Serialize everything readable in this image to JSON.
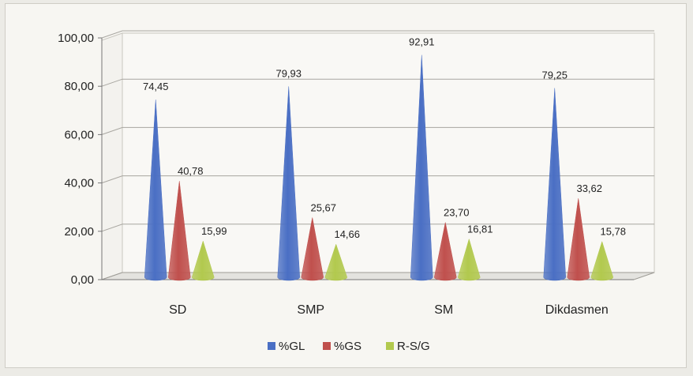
{
  "chart_data": {
    "type": "bar",
    "style": "3d-cone",
    "categories": [
      "SD",
      "SMP",
      "SM",
      "Dikdasmen"
    ],
    "series": [
      {
        "name": "%GL",
        "values": [
          74.45,
          79.93,
          92.91,
          79.25
        ],
        "labels": [
          "74,45",
          "79,93",
          "92,91",
          "79,25"
        ],
        "color": "#4a6fc4"
      },
      {
        "name": "%GS",
        "values": [
          40.78,
          25.67,
          23.7,
          33.62
        ],
        "labels": [
          "40,78",
          "25,67",
          "23,70",
          "33,62"
        ],
        "color": "#c0504d"
      },
      {
        "name": "R-S/G",
        "values": [
          15.99,
          14.66,
          16.81,
          15.78
        ],
        "labels": [
          "15,99",
          "14,66",
          "16,81",
          "15,78"
        ],
        "color": "#b2c94e"
      }
    ],
    "yticks": [
      "0,00",
      "20,00",
      "40,00",
      "60,00",
      "80,00",
      "100,00"
    ],
    "ylim": [
      0,
      100
    ],
    "grid": true,
    "legend_position": "bottom"
  }
}
